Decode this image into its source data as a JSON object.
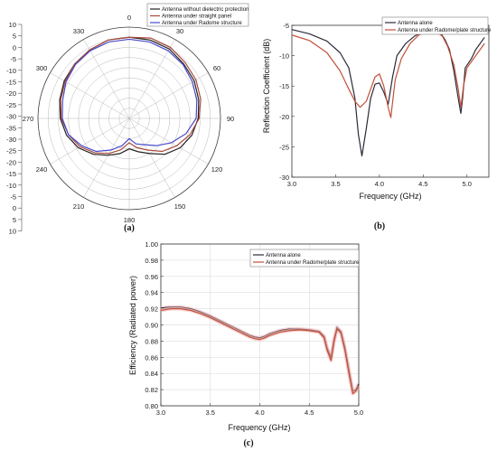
{
  "chart_data": [
    {
      "type": "polar",
      "caption": "(a)",
      "r_ticks": [
        "10",
        "5",
        "0",
        "-5",
        "-10",
        "-15",
        "-20",
        "-25",
        "-30",
        "-35",
        "-30",
        "-25",
        "-20",
        "-15",
        "-10",
        "-5",
        "0",
        "5",
        "10"
      ],
      "angle_ticks": [
        "0",
        "30",
        "60",
        "90",
        "120",
        "150",
        "180",
        "210",
        "240",
        "270",
        "300",
        "330"
      ],
      "rlim": [
        -35,
        10
      ],
      "angles": [
        0,
        15,
        30,
        45,
        60,
        75,
        90,
        105,
        120,
        135,
        150,
        165,
        180,
        195,
        210,
        225,
        240,
        255,
        270,
        285,
        300,
        315,
        330,
        345
      ],
      "series": [
        {
          "name": "Antenna without dielectric protection",
          "color": "#222222",
          "values": [
            5,
            5,
            4.5,
            3,
            2,
            0.5,
            -1,
            -3,
            -6,
            -10,
            -15,
            -18,
            -20,
            -17,
            -14,
            -10,
            -6,
            -3,
            -1,
            0.5,
            2,
            3,
            4,
            5
          ]
        },
        {
          "name": "Antenna under straight panel",
          "color": "#a84a3a",
          "values": [
            5,
            6,
            5.5,
            4,
            3,
            1.5,
            -0.5,
            -4,
            -8,
            -12,
            -17,
            -20,
            -23,
            -19,
            -15,
            -11,
            -7,
            -4,
            -1.5,
            0,
            1.5,
            3,
            4,
            5
          ]
        },
        {
          "name": "Antenna under Radome structure",
          "color": "#4a4acc",
          "values": [
            4,
            4,
            3.5,
            2.5,
            1,
            -0.5,
            -2,
            -6,
            -11,
            -16,
            -20,
            -22,
            -25,
            -21,
            -17,
            -12,
            -8,
            -4,
            -2,
            -1,
            1,
            2.5,
            3.5,
            4
          ]
        }
      ]
    },
    {
      "type": "line",
      "caption": "(b)",
      "xlabel": "Frequency (GHz)",
      "ylabel": "Reflection Coefficient (dB)",
      "xlim": [
        3.0,
        5.25
      ],
      "ylim": [
        -30,
        -5
      ],
      "xticks": [
        "3.0",
        "3.5",
        "4.0",
        "4.5",
        "5.0"
      ],
      "yticks": [
        "-5",
        "-10",
        "-15",
        "-20",
        "-25",
        "-30"
      ],
      "legend_position": "top-right",
      "series": [
        {
          "name": "Antenna alone",
          "color": "#2b2b3a",
          "x": [
            3.0,
            3.2,
            3.4,
            3.55,
            3.65,
            3.72,
            3.76,
            3.8,
            3.85,
            3.9,
            3.95,
            4.0,
            4.05,
            4.1,
            4.15,
            4.2,
            4.3,
            4.4,
            4.5,
            4.6,
            4.7,
            4.75,
            4.8,
            4.85,
            4.9,
            4.93,
            4.95,
            4.98,
            5.05,
            5.1,
            5.2
          ],
          "y": [
            -5.7,
            -6.4,
            -7.6,
            -9.5,
            -12,
            -17,
            -23,
            -26.5,
            -22,
            -17,
            -14.7,
            -14.5,
            -16,
            -18,
            -13.5,
            -10,
            -8,
            -6.8,
            -6,
            -5.7,
            -6.3,
            -7.4,
            -9,
            -12.5,
            -17,
            -19.5,
            -17,
            -12,
            -10.5,
            -9,
            -7
          ]
        },
        {
          "name": "Antenna under Radome/plate structure",
          "color": "#c0503a",
          "x": [
            3.0,
            3.2,
            3.4,
            3.55,
            3.65,
            3.72,
            3.78,
            3.85,
            3.9,
            3.95,
            4.0,
            4.05,
            4.1,
            4.13,
            4.18,
            4.25,
            4.35,
            4.45,
            4.55,
            4.65,
            4.72,
            4.78,
            4.85,
            4.9,
            4.93,
            4.96,
            5.0,
            5.1,
            5.2
          ],
          "y": [
            -6.6,
            -7.5,
            -9.5,
            -12.5,
            -15.5,
            -17.5,
            -18.5,
            -17.5,
            -15.5,
            -13.5,
            -13,
            -15,
            -18.5,
            -20.2,
            -14,
            -10.5,
            -8,
            -6.6,
            -6,
            -6,
            -6.8,
            -8.5,
            -11.5,
            -15.5,
            -18.5,
            -15,
            -12,
            -10,
            -8
          ]
        }
      ]
    },
    {
      "type": "line",
      "caption": "(c)",
      "xlabel": "Frequency (GHz)",
      "ylabel": "Efficiency (Radiated power)",
      "xlim": [
        3.0,
        5.0
      ],
      "ylim": [
        0.8,
        1.0
      ],
      "xticks": [
        "3.0",
        "3.5",
        "4.0",
        "4.5",
        "5.0"
      ],
      "yticks": [
        "1.00",
        "0.98",
        "0.96",
        "0.94",
        "0.92",
        "0.90",
        "0.88",
        "0.86",
        "0.84",
        "0.82",
        "0.80"
      ],
      "legend_position": "top-right",
      "series": [
        {
          "name": "Antenna alone",
          "color": "#2b2b3a",
          "x": [
            3.0,
            3.1,
            3.2,
            3.3,
            3.4,
            3.5,
            3.6,
            3.7,
            3.8,
            3.9,
            3.95,
            4.0,
            4.05,
            4.1,
            4.2,
            4.3,
            4.4,
            4.5,
            4.6,
            4.65,
            4.68,
            4.72,
            4.75,
            4.78,
            4.82,
            4.86,
            4.9,
            4.94,
            4.97,
            5.0
          ],
          "y": [
            0.921,
            0.922,
            0.922,
            0.92,
            0.916,
            0.911,
            0.905,
            0.899,
            0.893,
            0.887,
            0.885,
            0.884,
            0.886,
            0.889,
            0.893,
            0.895,
            0.895,
            0.894,
            0.892,
            0.886,
            0.872,
            0.86,
            0.882,
            0.897,
            0.892,
            0.872,
            0.845,
            0.818,
            0.82,
            0.827
          ]
        },
        {
          "name": "Antenna under Radome/plate structure",
          "color": "#c0503a",
          "x": [
            3.0,
            3.1,
            3.2,
            3.3,
            3.4,
            3.5,
            3.6,
            3.7,
            3.8,
            3.9,
            3.95,
            4.0,
            4.05,
            4.1,
            4.2,
            4.3,
            4.4,
            4.5,
            4.6,
            4.65,
            4.68,
            4.72,
            4.75,
            4.78,
            4.82,
            4.86,
            4.9,
            4.94,
            4.97,
            5.0
          ],
          "y": [
            0.918,
            0.92,
            0.92,
            0.918,
            0.914,
            0.909,
            0.903,
            0.897,
            0.891,
            0.885,
            0.883,
            0.882,
            0.884,
            0.887,
            0.891,
            0.893,
            0.894,
            0.893,
            0.891,
            0.884,
            0.869,
            0.856,
            0.879,
            0.895,
            0.89,
            0.869,
            0.841,
            0.815,
            0.818,
            0.824
          ]
        }
      ]
    }
  ]
}
